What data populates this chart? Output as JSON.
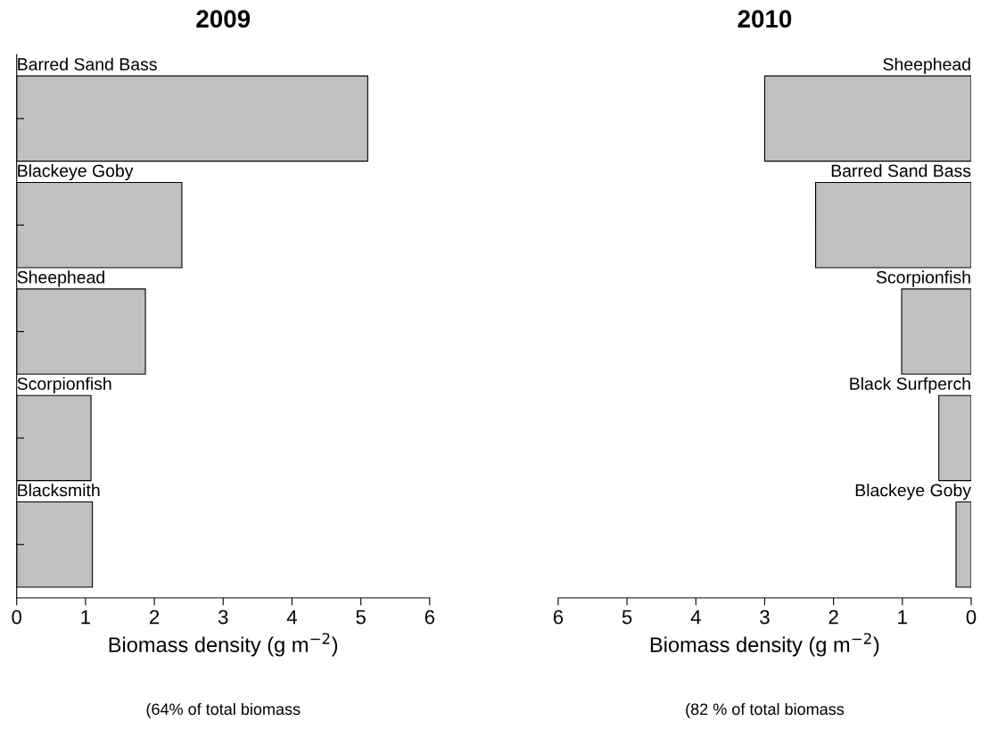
{
  "chart_data": [
    {
      "type": "bar",
      "orientation": "horizontal",
      "title": "2009",
      "xlabel": "Biomass density (g m$^{−2}$)",
      "categories": [
        "Barred Sand Bass",
        "Blackeye Goby",
        "Sheephead",
        "Scorpionfish",
        "Blacksmith"
      ],
      "values": [
        5.1,
        2.4,
        1.87,
        1.08,
        1.1
      ],
      "color": "#c0c0c0",
      "xlim": [
        0,
        6
      ],
      "xticks": [
        0,
        1,
        2,
        3,
        4,
        5,
        6
      ],
      "tick_labels": "x",
      "grid": false,
      "annotations": [
        "(64% of total biomass"
      ]
    },
    {
      "type": "bar",
      "orientation": "horizontal",
      "title": "2010",
      "xlabel": "Biomass density (g m$^{−2}$)",
      "categories": [
        "Sheephead",
        "Barred Sand Bass",
        "Scorpionfish",
        "Black Surfperch",
        "Blackeye Goby"
      ],
      "values": [
        3.0,
        2.26,
        1.01,
        0.47,
        0.22
      ],
      "color": "#c0c0c0",
      "xlim": [
        6,
        0
      ],
      "xticks": [
        6,
        5,
        4,
        3,
        2,
        1,
        0
      ],
      "tick_labels": "x",
      "grid": false,
      "annotations": [
        "(82 % of total biomass"
      ]
    }
  ]
}
